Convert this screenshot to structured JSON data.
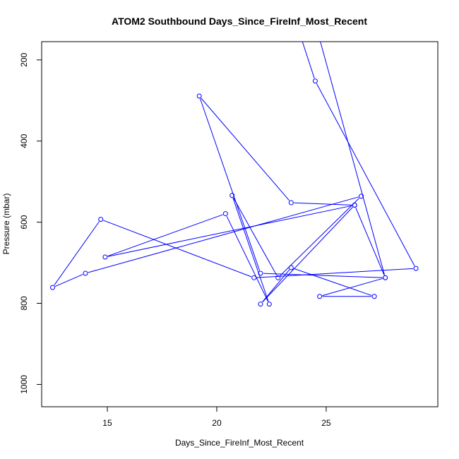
{
  "chart_data": {
    "type": "line",
    "title": "ATOM2 Southbound Days_Since_FireInf_Most_Recent",
    "xlabel": "Days_Since_FireInf_Most_Recent",
    "ylabel": "Pressure (mbar)",
    "xlim": [
      12.0,
      30.1
    ],
    "ylim": [
      1055,
      155
    ],
    "y_reversed": true,
    "x_ticks": [
      15,
      20,
      25
    ],
    "y_ticks": [
      200,
      400,
      600,
      800,
      1000
    ],
    "grid": false,
    "series": [
      {
        "color": "#0000ff",
        "marker": "open-circle",
        "points": [
          [
            24.3,
            70
          ],
          [
            27.7,
            737
          ],
          [
            22.0,
            726
          ],
          [
            19.2,
            289
          ],
          [
            23.4,
            552
          ],
          [
            26.3,
            558
          ],
          [
            22.0,
            802
          ],
          [
            23.4,
            712
          ],
          [
            27.2,
            783
          ],
          [
            24.7,
            783
          ],
          [
            27.7,
            737
          ],
          [
            26.3,
            558
          ],
          [
            14.9,
            686
          ],
          [
            20.4,
            579
          ],
          [
            22.4,
            802
          ],
          [
            20.7,
            534
          ],
          [
            22.8,
            737
          ],
          [
            26.6,
            536
          ],
          [
            14.0,
            726
          ],
          [
            12.5,
            761
          ],
          [
            14.7,
            593
          ],
          [
            21.7,
            737
          ],
          [
            29.1,
            714
          ],
          [
            24.5,
            252
          ],
          [
            23.4,
            70
          ]
        ]
      }
    ]
  }
}
